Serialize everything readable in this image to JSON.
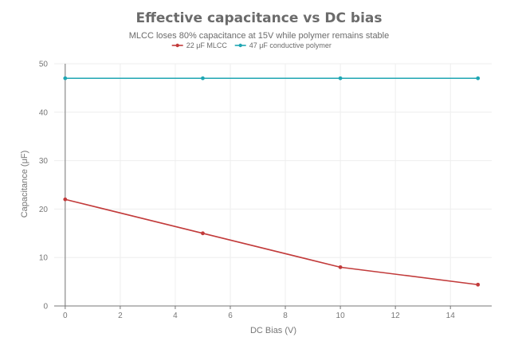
{
  "chart_data": {
    "type": "line",
    "title": "Effective capacitance vs DC bias",
    "subtitle": "MLCC loses 80% capacitance at 15V while polymer remains stable",
    "xlabel": "DC Bias (V)",
    "ylabel": "Capacitance (μF)",
    "xlim": [
      -0.4,
      15.5
    ],
    "ylim": [
      0,
      50
    ],
    "xticks": [
      0,
      2,
      4,
      6,
      8,
      10,
      12,
      14
    ],
    "yticks": [
      0,
      10,
      20,
      30,
      40,
      50
    ],
    "grid": true,
    "legend": "top-center",
    "series": [
      {
        "name": "22 μF MLCC",
        "color": "#c23b3b",
        "x": [
          0,
          5,
          10,
          15
        ],
        "y": [
          22,
          15,
          8,
          4.4
        ]
      },
      {
        "name": "47 μF conductive polymer",
        "color": "#1fa6b3",
        "x": [
          0,
          5,
          10,
          15
        ],
        "y": [
          47,
          47,
          47,
          47
        ]
      }
    ]
  }
}
